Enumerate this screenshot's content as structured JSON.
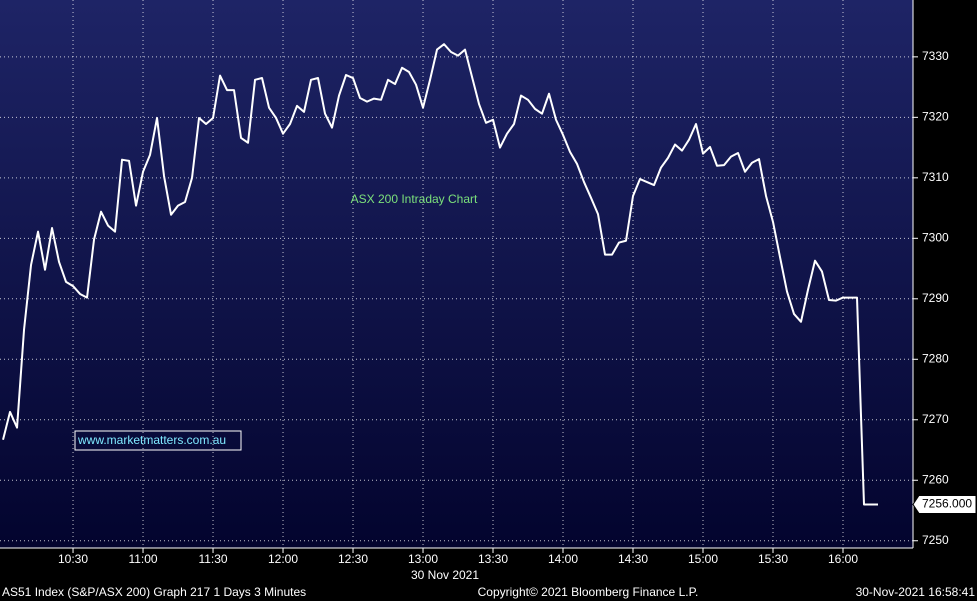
{
  "chart_data": {
    "type": "line",
    "annotation": "ASX 200 Intraday Chart",
    "watermark": "www.marketmatters.com.au",
    "date_label": "30 Nov 2021",
    "footer_left": "AS51 Index (S&P/ASX 200) Graph 217 1 Days 3 Minutes",
    "footer_center": "Copyright© 2021 Bloomberg Finance L.P.",
    "footer_right": "30-Nov-2021 16:58:41",
    "last_price": {
      "value": 7256,
      "label": "7256.000"
    },
    "color": "#ffffff",
    "grid": true,
    "xlim": [
      598.7,
      990
    ],
    "ylim": [
      7248.8,
      7339.4
    ],
    "xticks": [
      {
        "value": 630,
        "label": "10:30"
      },
      {
        "value": 660,
        "label": "11:00"
      },
      {
        "value": 690,
        "label": "11:30"
      },
      {
        "value": 720,
        "label": "12:00"
      },
      {
        "value": 750,
        "label": "12:30"
      },
      {
        "value": 780,
        "label": "13:00"
      },
      {
        "value": 810,
        "label": "13:30"
      },
      {
        "value": 840,
        "label": "14:00"
      },
      {
        "value": 870,
        "label": "14:30"
      },
      {
        "value": 900,
        "label": "15:00"
      },
      {
        "value": 930,
        "label": "15:30"
      },
      {
        "value": 960,
        "label": "16:00"
      }
    ],
    "yticks": [
      7250,
      7260,
      7270,
      7280,
      7290,
      7300,
      7310,
      7320,
      7330
    ],
    "x": [
      600,
      603,
      606,
      609,
      612,
      615,
      618,
      621,
      624,
      627,
      630,
      633,
      636,
      639,
      642,
      645,
      648,
      651,
      654,
      657,
      660,
      663,
      666,
      669,
      672,
      675,
      678,
      681,
      684,
      687,
      690,
      693,
      696,
      699,
      702,
      705,
      708,
      711,
      714,
      717,
      720,
      723,
      726,
      729,
      732,
      735,
      738,
      741,
      744,
      747,
      750,
      753,
      756,
      759,
      762,
      765,
      768,
      771,
      774,
      777,
      780,
      783,
      786,
      789,
      792,
      795,
      798,
      801,
      804,
      807,
      810,
      813,
      816,
      819,
      822,
      825,
      828,
      831,
      834,
      837,
      840,
      843,
      846,
      849,
      852,
      855,
      858,
      861,
      864,
      867,
      870,
      873,
      876,
      879,
      882,
      885,
      888,
      891,
      894,
      897,
      900,
      903,
      906,
      909,
      912,
      915,
      918,
      921,
      924,
      927,
      930,
      933,
      936,
      939,
      942,
      945,
      948,
      951,
      954,
      957,
      960,
      963,
      966,
      969,
      972,
      975
    ],
    "values": [
      7266.7,
      7271.3,
      7268.7,
      7284.9,
      7295.6,
      7301.1,
      7294.8,
      7301.7,
      7296.1,
      7292.8,
      7292.1,
      7290.8,
      7290.2,
      7299.8,
      7304.4,
      7302.1,
      7301.1,
      7313.0,
      7312.8,
      7305.4,
      7311.0,
      7313.8,
      7319.9,
      7310.3,
      7303.9,
      7305.4,
      7306.0,
      7310.0,
      7319.9,
      7318.9,
      7319.9,
      7326.9,
      7324.5,
      7324.5,
      7316.6,
      7315.8,
      7326.2,
      7326.5,
      7321.6,
      7319.9,
      7317.3,
      7318.9,
      7321.9,
      7320.9,
      7326.2,
      7326.5,
      7320.6,
      7318.3,
      7323.6,
      7327.0,
      7326.5,
      7323.2,
      7322.6,
      7323.1,
      7322.9,
      7326.2,
      7325.5,
      7328.2,
      7327.5,
      7325.4,
      7321.6,
      7326.2,
      7331.2,
      7332.1,
      7330.8,
      7330.2,
      7331.2,
      7326.7,
      7322.2,
      7319.1,
      7319.6,
      7315.0,
      7317.3,
      7318.9,
      7323.6,
      7322.9,
      7321.4,
      7320.6,
      7323.9,
      7319.6,
      7317.1,
      7314.3,
      7312.3,
      7309.3,
      7306.7,
      7304.0,
      7297.3,
      7297.3,
      7299.3,
      7299.6,
      7307.0,
      7309.8,
      7309.3,
      7308.8,
      7311.7,
      7313.3,
      7315.5,
      7314.5,
      7316.3,
      7318.9,
      7314.0,
      7315.1,
      7312.0,
      7312.1,
      7313.5,
      7314.1,
      7311.0,
      7312.5,
      7313.1,
      7307.0,
      7302.7,
      7296.9,
      7291.2,
      7287.5,
      7286.2,
      7291.5,
      7296.3,
      7294.5,
      7289.8,
      7289.7,
      7290.2,
      7290.2,
      7290.2,
      7256,
      7256,
      7256
    ]
  }
}
